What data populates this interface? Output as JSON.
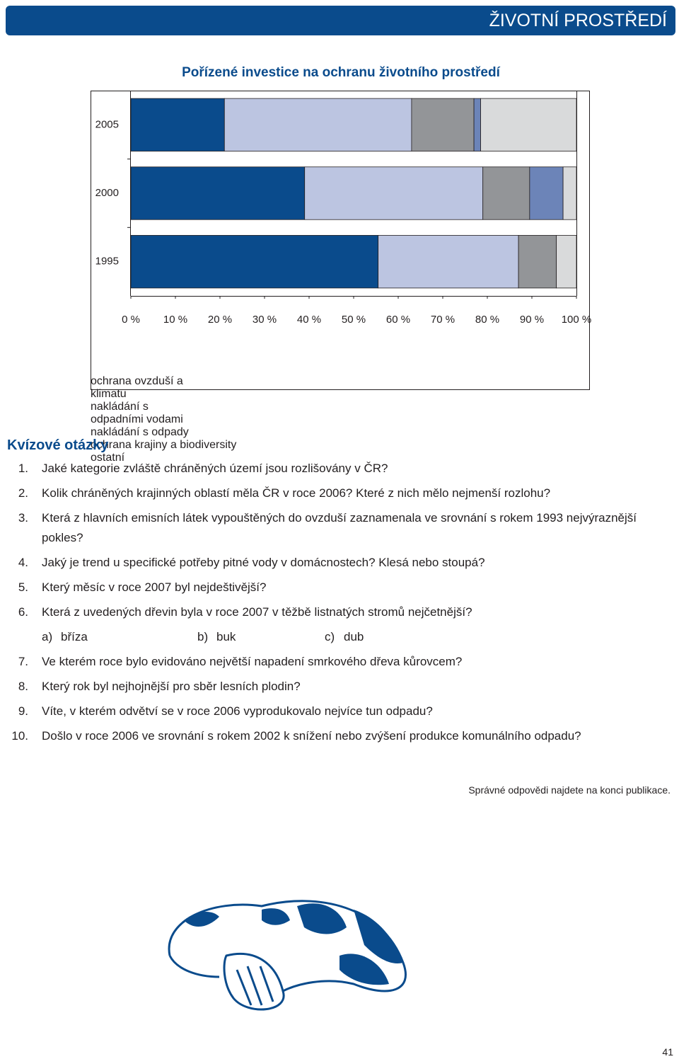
{
  "header": {
    "section": "ŽIVOTNÍ PROSTŘEDÍ"
  },
  "chart_data": {
    "type": "stacked-bar-horizontal",
    "title": "Pořízené investice na ochranu životního prostředí",
    "categories": [
      "2005",
      "2000",
      "1995"
    ],
    "series": [
      {
        "name": "ochrana ovzduší a klimatu",
        "color": "#0a4b8c",
        "values": [
          21,
          39,
          55.5
        ]
      },
      {
        "name": "nakládání s odpadními vodami",
        "color": "#bcc5e1",
        "values": [
          42,
          40,
          31.5
        ]
      },
      {
        "name": "nakládání s odpady",
        "color": "#939598",
        "values": [
          14,
          10.5,
          8.5
        ]
      },
      {
        "name": "ochrana krajiny a biodiversity",
        "color": "#6c84b8",
        "values": [
          1.5,
          7.5,
          0
        ]
      },
      {
        "name": "ostatní",
        "color": "#d9dadb",
        "values": [
          21.5,
          3,
          4.5
        ]
      }
    ],
    "xlim": [
      0,
      100
    ],
    "xticks": [
      {
        "value": 0,
        "label": "0 %"
      },
      {
        "value": 10,
        "label": "10 %"
      },
      {
        "value": 20,
        "label": "20 %"
      },
      {
        "value": 30,
        "label": "30 %"
      },
      {
        "value": 40,
        "label": "40 %"
      },
      {
        "value": 50,
        "label": "50 %"
      },
      {
        "value": 60,
        "label": "60 %"
      },
      {
        "value": 70,
        "label": "70 %"
      },
      {
        "value": 80,
        "label": "80 %"
      },
      {
        "value": 90,
        "label": "90 %"
      },
      {
        "value": 100,
        "label": "100 %"
      }
    ]
  },
  "quiz": {
    "title": "Kvízové otázky",
    "questions": [
      {
        "number": "1.",
        "text": "Jaké kategorie zvláště chráněných území jsou rozlišovány v ČR?"
      },
      {
        "number": "2.",
        "text": "Kolik chráněných krajinných oblastí měla ČR v roce 2006? Které z nich mělo nejmenší rozlohu?"
      },
      {
        "number": "3.",
        "text": "Která z hlavních emisních látek vypouštěných do ovzduší zaznamenala ve srovnání s rokem 1993 nejvýraznější pokles?"
      },
      {
        "number": "4.",
        "text": "Jaký je trend u specifické potřeby pitné vody v domácnostech? Klesá nebo stoupá?"
      },
      {
        "number": "5.",
        "text": "Který měsíc v roce 2007 byl nejdeštivější?"
      },
      {
        "number": "6.",
        "text": "Která z uvedených dřevin byla v roce 2007 v těžbě listnatých stromů nejčetnější?",
        "options": [
          {
            "label": "a)",
            "text": "bříza"
          },
          {
            "label": "b)",
            "text": "buk"
          },
          {
            "label": "c)",
            "text": "dub"
          }
        ]
      },
      {
        "number": "7.",
        "text": "Ve kterém roce bylo evidováno největší napadení smrkového dřeva kůrovcem?"
      },
      {
        "number": "8.",
        "text": "Který rok byl nejhojnější pro sběr lesních plodin?"
      },
      {
        "number": "9.",
        "text": "Víte, v kterém odvětví se v roce 2006 vyprodukovalo nejvíce tun odpadu?"
      },
      {
        "number": "10.",
        "text": "Došlo v roce 2006 ve srovnání s rokem 2002 k snížení nebo zvýšení produkce komunálního odpadu?"
      }
    ]
  },
  "note": "Správné odpovědi najdete na konci publikace.",
  "page_number": "41"
}
